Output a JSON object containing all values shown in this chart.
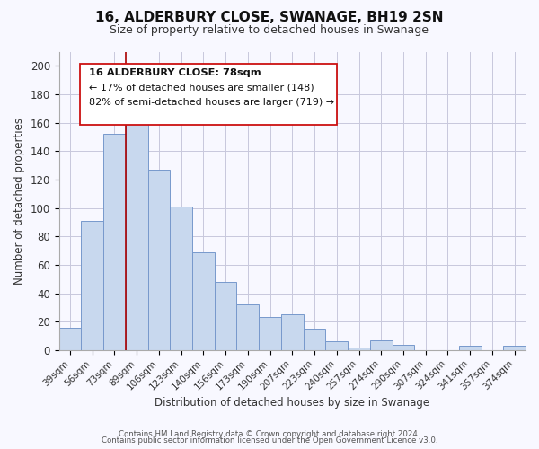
{
  "title": "16, ALDERBURY CLOSE, SWANAGE, BH19 2SN",
  "subtitle": "Size of property relative to detached houses in Swanage",
  "xlabel": "Distribution of detached houses by size in Swanage",
  "ylabel": "Number of detached properties",
  "bar_labels": [
    "39sqm",
    "56sqm",
    "73sqm",
    "89sqm",
    "106sqm",
    "123sqm",
    "140sqm",
    "156sqm",
    "173sqm",
    "190sqm",
    "207sqm",
    "223sqm",
    "240sqm",
    "257sqm",
    "274sqm",
    "290sqm",
    "307sqm",
    "324sqm",
    "341sqm",
    "357sqm",
    "374sqm"
  ],
  "bar_values": [
    16,
    91,
    152,
    165,
    127,
    101,
    69,
    48,
    32,
    23,
    25,
    15,
    6,
    2,
    7,
    4,
    0,
    0,
    3,
    0,
    3
  ],
  "bar_color": "#c8d8ee",
  "bar_edge_color": "#7799cc",
  "ylim": [
    0,
    210
  ],
  "yticks": [
    0,
    20,
    40,
    60,
    80,
    100,
    120,
    140,
    160,
    180,
    200
  ],
  "red_line_index": 2,
  "annotation_text_line1": "16 ALDERBURY CLOSE: 78sqm",
  "annotation_text_line2": "← 17% of detached houses are smaller (148)",
  "annotation_text_line3": "82% of semi-detached houses are larger (719) →",
  "footer_line1": "Contains HM Land Registry data © Crown copyright and database right 2024.",
  "footer_line2": "Contains public sector information licensed under the Open Government Licence v3.0.",
  "background_color": "#f8f8ff",
  "grid_color": "#c8c8dc"
}
